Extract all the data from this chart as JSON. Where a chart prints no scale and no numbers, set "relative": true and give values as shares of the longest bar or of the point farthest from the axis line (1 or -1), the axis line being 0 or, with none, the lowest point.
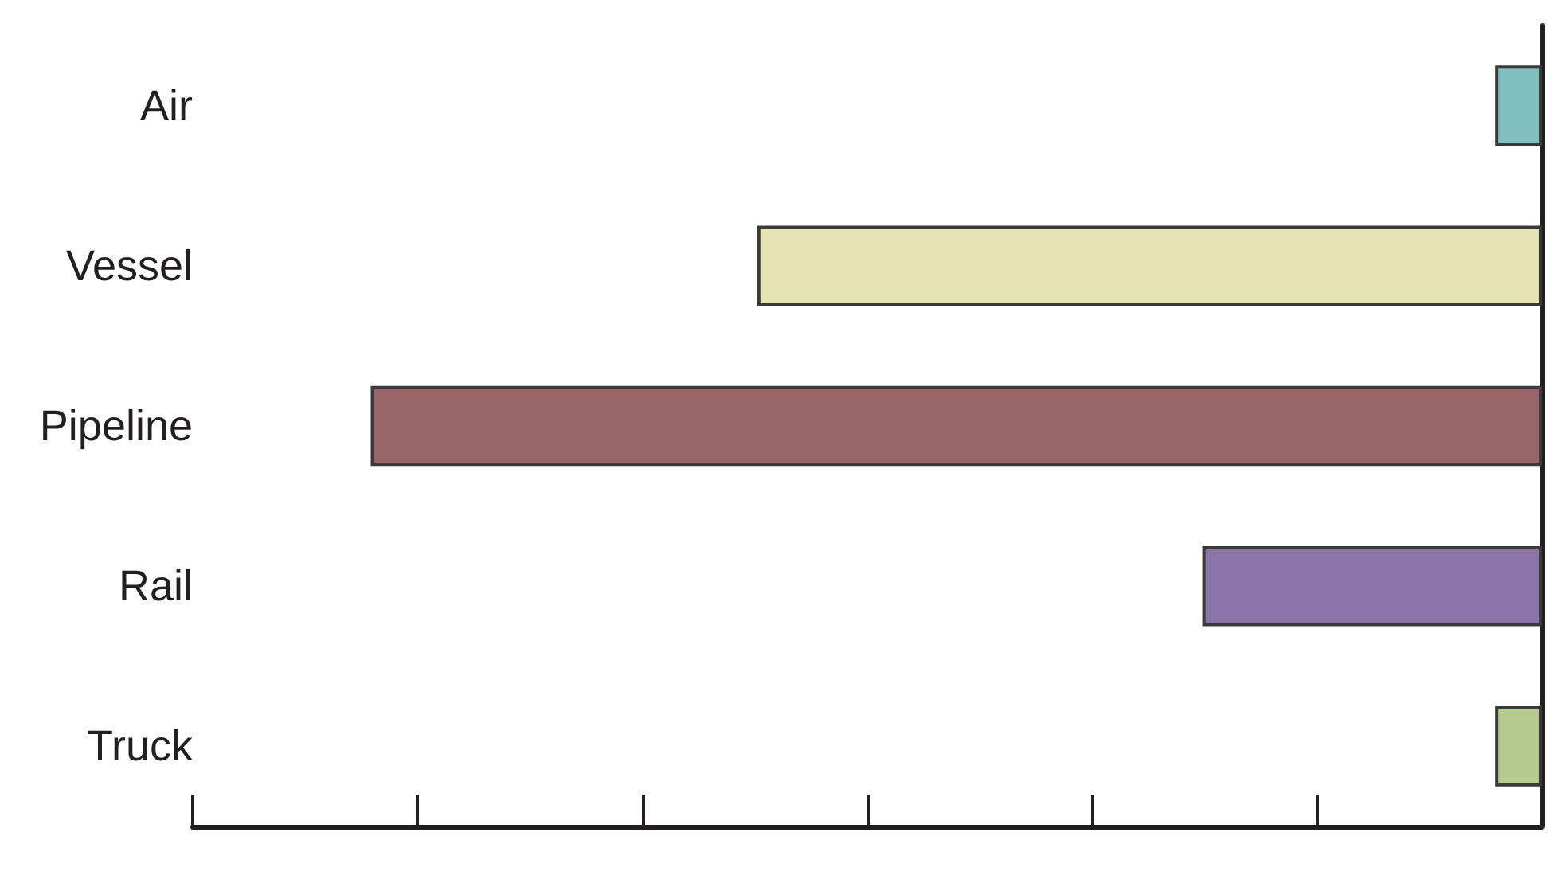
{
  "chart_data": {
    "type": "bar",
    "orientation": "horizontal",
    "relative": true,
    "categories": [
      "Air",
      "Vessel",
      "Pipeline",
      "Rail",
      "Truck"
    ],
    "values": [
      -0.04,
      -0.67,
      -1,
      -0.29,
      -0.04
    ],
    "colors": [
      "#7fbfbf",
      "#e6e3b4",
      "#976567",
      "#8a74a8",
      "#b5cc8e"
    ]
  }
}
